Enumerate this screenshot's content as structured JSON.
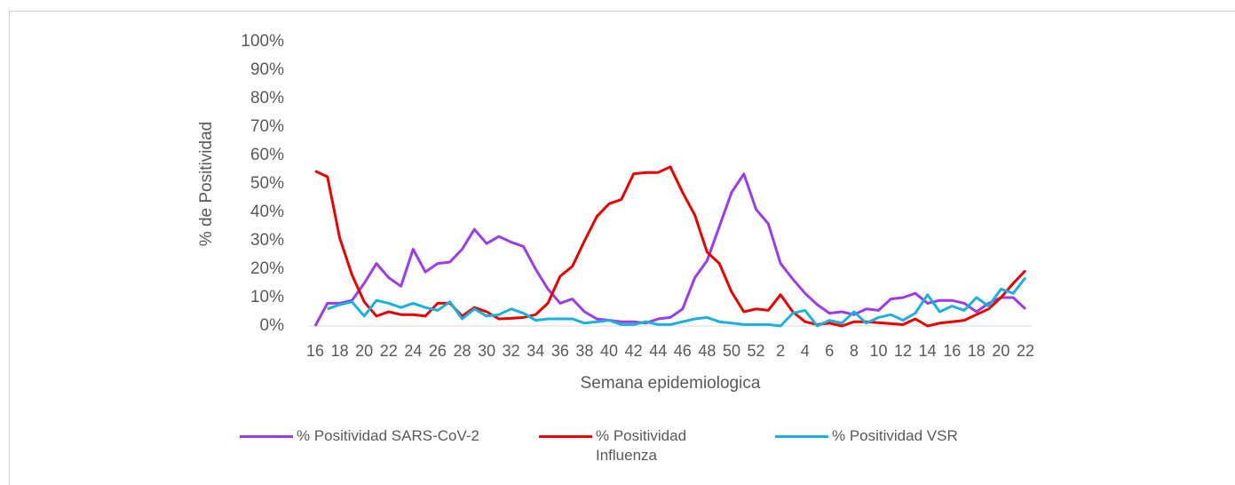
{
  "chart_data": {
    "type": "line",
    "y_label": "% de Positividad",
    "x_label": "Semana epidemiologica",
    "categories": [
      "16",
      null,
      "18",
      null,
      "20",
      null,
      "22",
      null,
      "24",
      null,
      "26",
      null,
      "28",
      null,
      "30",
      null,
      "32",
      null,
      "34",
      null,
      "36",
      null,
      "38",
      null,
      "40",
      null,
      "42",
      null,
      "44",
      null,
      "46",
      null,
      "48",
      null,
      "50",
      null,
      "52",
      null,
      "2",
      null,
      "4",
      null,
      "6",
      null,
      "8",
      null,
      "10",
      null,
      "12",
      null,
      "14",
      null,
      "16",
      null,
      "18",
      null,
      "20",
      null,
      "22"
    ],
    "series": [
      {
        "name": "% Positividad SARS-CoV-2",
        "color": "#9b3bea",
        "values": [
          0,
          8,
          8,
          9,
          15,
          22,
          17,
          14,
          27,
          19,
          22,
          22.5,
          27,
          34,
          29,
          31.5,
          29.5,
          28,
          20,
          13,
          8,
          9.5,
          5,
          2.5,
          2,
          1.5,
          1.5,
          1,
          2.5,
          3,
          6,
          17,
          23,
          35,
          47,
          53.5,
          41,
          36,
          22,
          16.5,
          11.5,
          7.5,
          4.5,
          5,
          4,
          6,
          5.5,
          9.5,
          10,
          11.5,
          8,
          9,
          9,
          8,
          5,
          8,
          10,
          10,
          6
        ]
      },
      {
        "name": "% Positividad Influenza",
        "color": "#ee0000",
        "values": [
          54.5,
          52.5,
          31,
          18,
          8.5,
          3.5,
          5,
          4,
          4,
          3.5,
          8,
          8,
          3.5,
          6.5,
          5,
          2.5,
          2.7,
          3,
          4,
          8,
          17.5,
          21,
          30,
          38.5,
          43,
          44.5,
          53.5,
          54,
          54,
          56,
          47,
          39,
          26,
          22,
          12,
          5,
          6,
          5.5,
          11,
          5,
          1.5,
          0.5,
          1,
          0,
          1.5,
          1.5,
          1.2,
          0.8,
          0.5,
          2.5,
          0,
          1,
          1.5,
          2,
          4,
          6,
          10,
          15,
          19.5
        ]
      },
      {
        "name": "% Positividad VSR",
        "color": "#1ab0e0",
        "values": [
          null,
          6,
          7.5,
          8.5,
          3.5,
          9,
          8,
          6.5,
          8,
          6.5,
          5.5,
          8.5,
          2.5,
          6,
          3.5,
          4,
          6,
          4.5,
          2,
          2.5,
          2.5,
          2.5,
          1,
          1.5,
          2,
          0.5,
          0.5,
          1.5,
          0.5,
          0.5,
          1.5,
          2.5,
          3,
          1.5,
          1,
          0.5,
          0.5,
          0.5,
          0,
          4.5,
          5.5,
          0,
          2,
          1,
          5,
          1,
          3,
          4,
          2,
          4.5,
          11,
          5,
          7,
          5.5,
          10,
          7,
          13,
          11.5,
          17
        ]
      }
    ],
    "ylim": [
      0,
      100
    ],
    "yticks": [
      {
        "value": 0,
        "label": "0%"
      },
      {
        "value": 10,
        "label": "10%"
      },
      {
        "value": 20,
        "label": "20%"
      },
      {
        "value": 30,
        "label": "30%"
      },
      {
        "value": 40,
        "label": "40%"
      },
      {
        "value": 50,
        "label": "50%"
      },
      {
        "value": 60,
        "label": "60%"
      },
      {
        "value": 70,
        "label": "70%"
      },
      {
        "value": 80,
        "label": "80%"
      },
      {
        "value": 90,
        "label": "90%"
      },
      {
        "value": 100,
        "label": "100%"
      }
    ],
    "grid": false,
    "legend": "bottom"
  }
}
